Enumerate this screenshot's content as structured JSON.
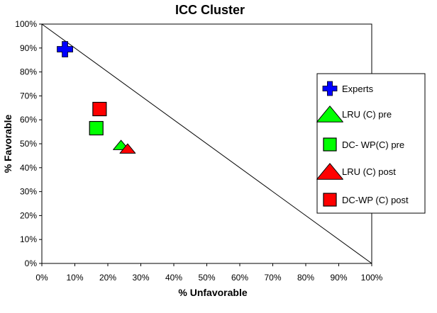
{
  "chart_data": {
    "type": "scatter",
    "title": "ICC Cluster",
    "xlabel": "% Unfavorable",
    "ylabel": "% Favorable",
    "xlim": [
      0,
      100
    ],
    "ylim": [
      0,
      100
    ],
    "x_ticks": [
      "0%",
      "10%",
      "20%",
      "30%",
      "40%",
      "50%",
      "60%",
      "70%",
      "80%",
      "90%",
      "100%"
    ],
    "y_ticks": [
      "0%",
      "10%",
      "20%",
      "30%",
      "40%",
      "50%",
      "60%",
      "70%",
      "80%",
      "90%",
      "100%"
    ],
    "grid": false,
    "reference_line": {
      "from": [
        0,
        100
      ],
      "to": [
        100,
        0
      ]
    },
    "legend_position": "right",
    "series": [
      {
        "name": "Experts",
        "marker": "plus",
        "color": "#0000ff",
        "points": [
          {
            "x": 7,
            "y": 89.5
          }
        ]
      },
      {
        "name": "LRU (C) pre",
        "marker": "triangle",
        "color": "#00ff00",
        "points": [
          {
            "x": 24,
            "y": 49.5
          }
        ]
      },
      {
        "name": "DC- WP(C) pre",
        "marker": "square",
        "color": "#00ff00",
        "points": [
          {
            "x": 16.5,
            "y": 56.5
          }
        ]
      },
      {
        "name": "LRU (C) post",
        "marker": "triangle",
        "color": "#ff0000",
        "points": [
          {
            "x": 26,
            "y": 48
          }
        ]
      },
      {
        "name": "DC-WP (C) post",
        "marker": "square",
        "color": "#ff0000",
        "points": [
          {
            "x": 17.5,
            "y": 64.5
          }
        ]
      }
    ]
  }
}
